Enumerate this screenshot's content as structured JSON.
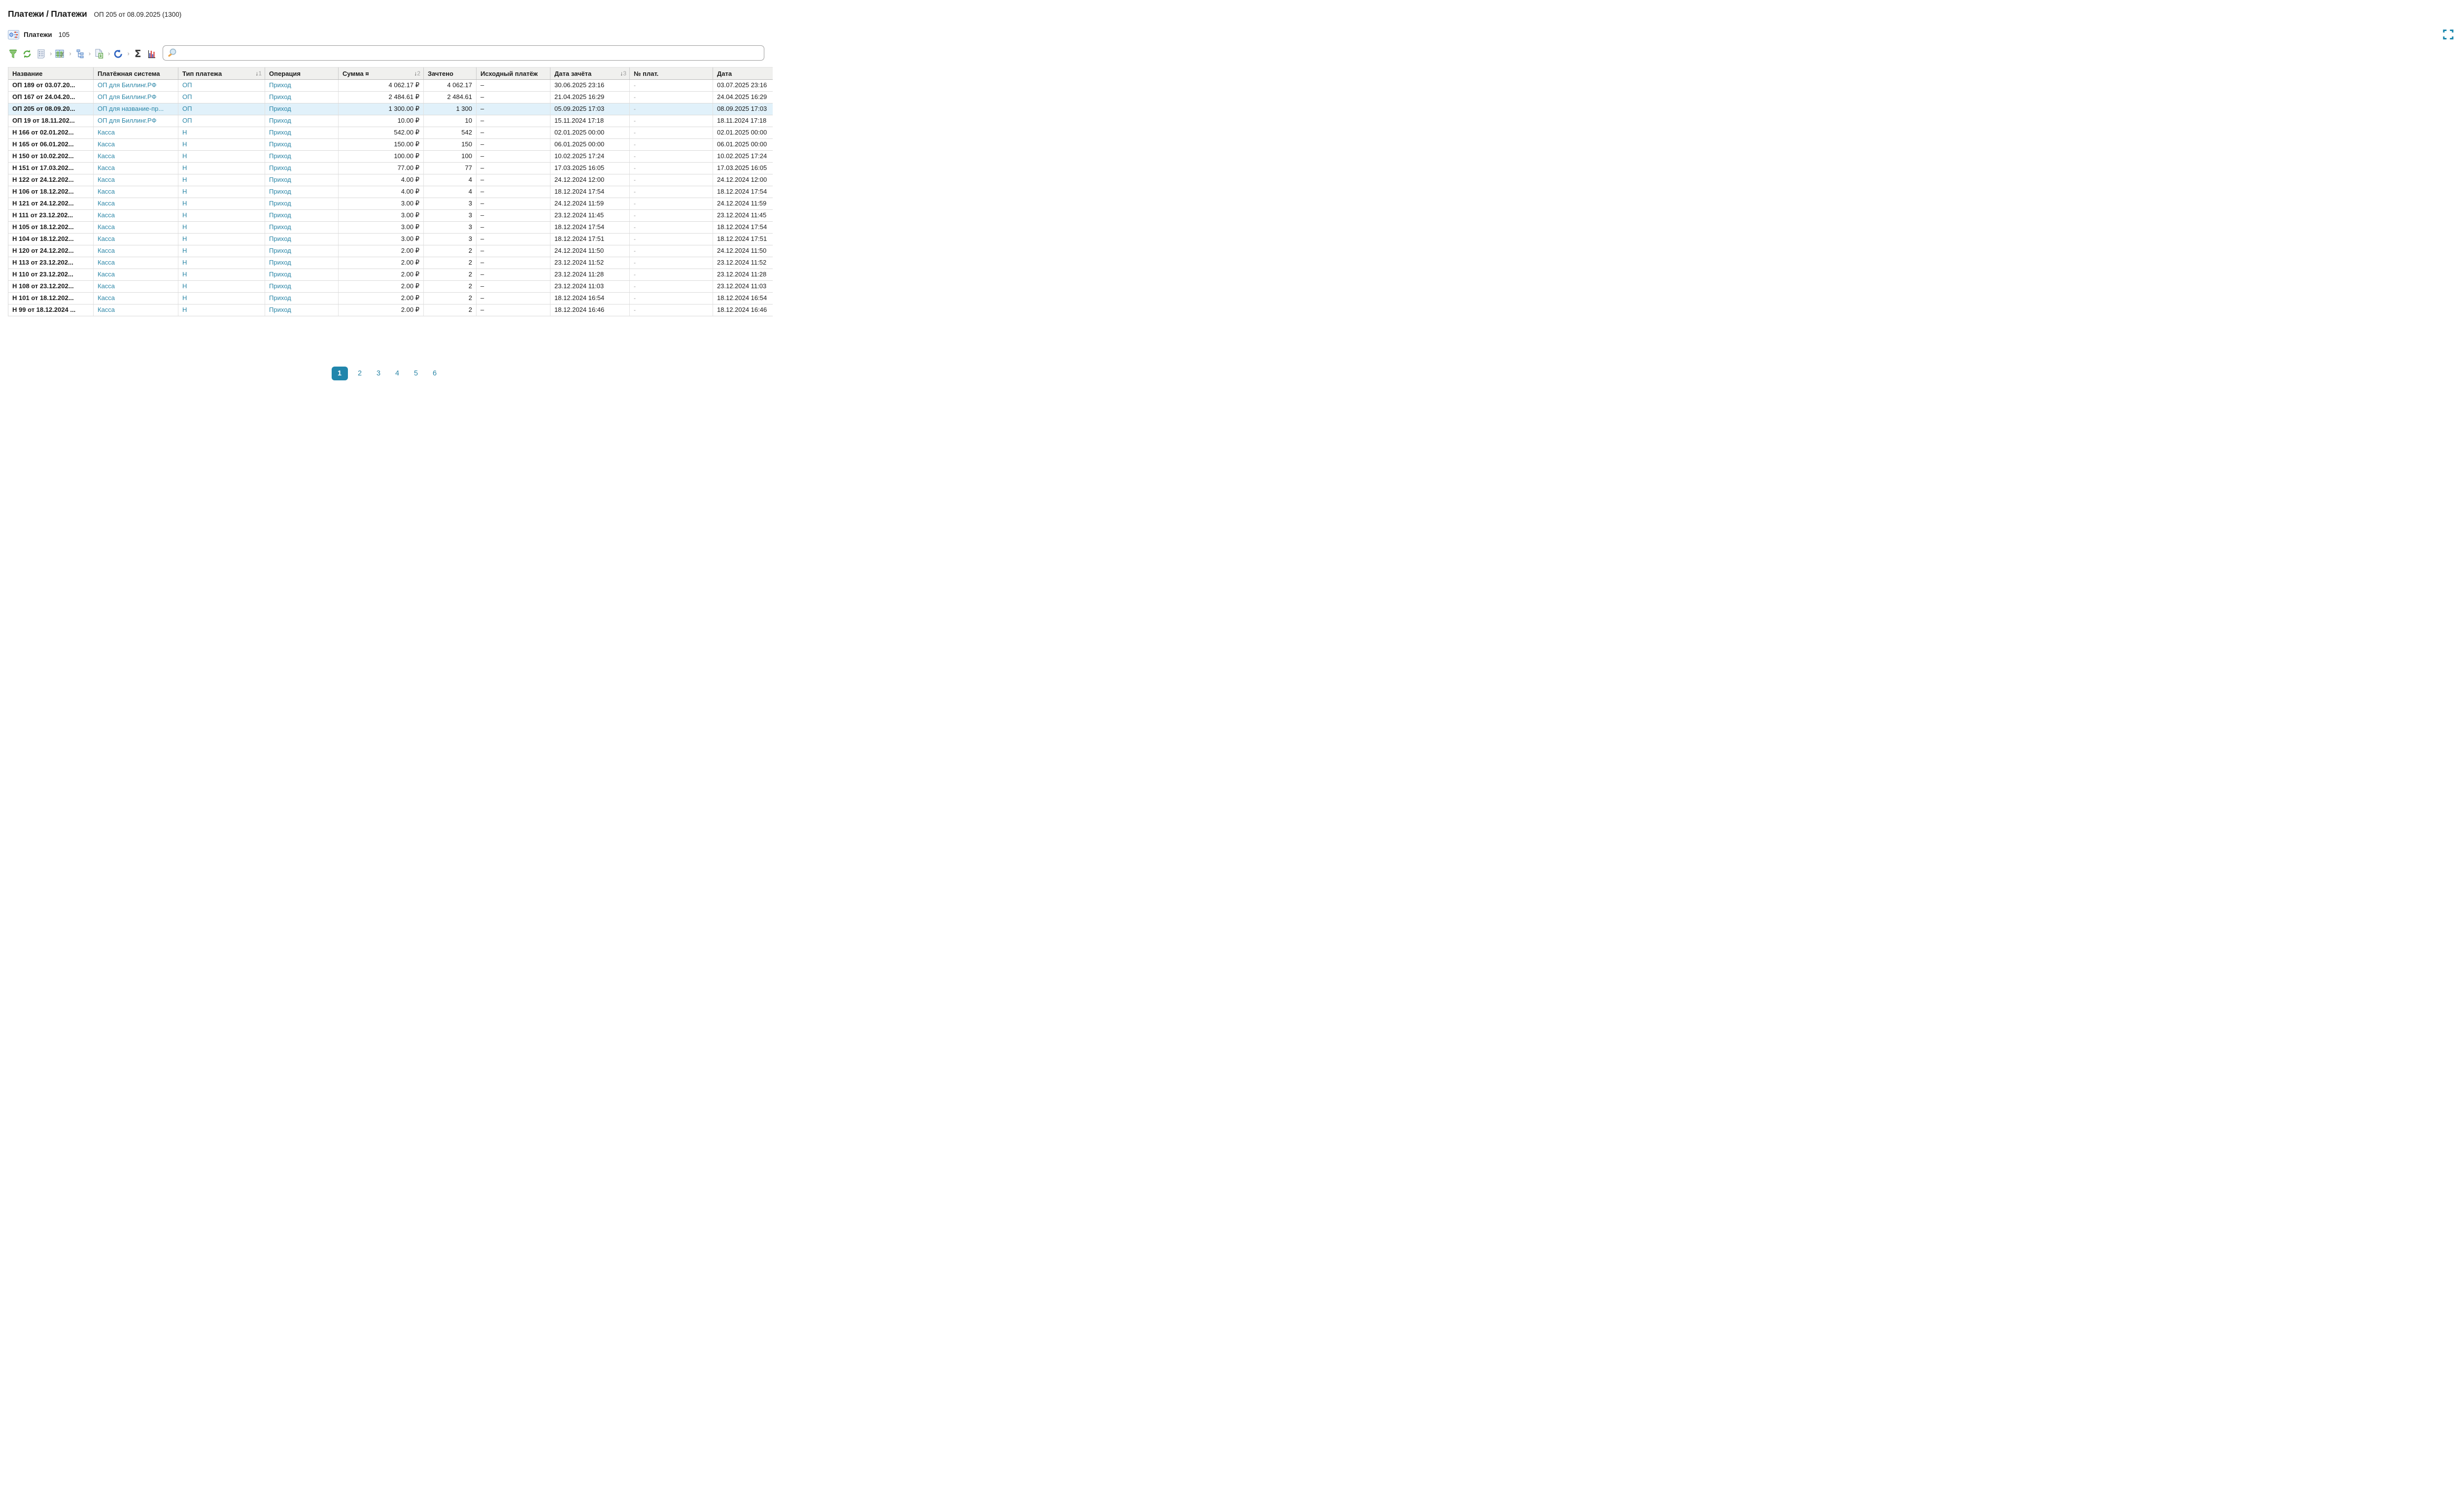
{
  "page": {
    "title": "Платежи / Платежи",
    "subtitle": "ОП 205 от 08.09.2025 (1300)",
    "list_title": "Платежи",
    "list_count": "105"
  },
  "toolbar": {
    "icons": [
      "filter-icon",
      "refresh-icon",
      "report-icon",
      "table-edit-icon",
      "tree-icon",
      "export-icon",
      "undo-icon",
      "sum-icon",
      "chart-icon"
    ],
    "search": {
      "value": "",
      "placeholder": ""
    }
  },
  "colors": {
    "accent_teal": "#2b86a7",
    "pagination_active_bg": "#2186ac",
    "selected_row_bg": "#e1f1fa",
    "header_bg": "#f0f0ee",
    "icon_green": "#5aab46",
    "icon_blue": "#3f6fbe",
    "icon_red": "#d9533d"
  },
  "table": {
    "columns": [
      {
        "id": "name",
        "label": "Название",
        "sort": ""
      },
      {
        "id": "payment-system",
        "label": "Платёжная система",
        "sort": ""
      },
      {
        "id": "payment-type",
        "label": "Тип платежа",
        "sort": "1"
      },
      {
        "id": "operation",
        "label": "Операция",
        "sort": ""
      },
      {
        "id": "sum",
        "label": "Сумма ¤",
        "sort": "2"
      },
      {
        "id": "credited",
        "label": "Зачтено",
        "sort": ""
      },
      {
        "id": "source-payment",
        "label": "Исходный платёж",
        "sort": ""
      },
      {
        "id": "credit-date",
        "label": "Дата зачёта",
        "sort": "3"
      },
      {
        "id": "payment-no",
        "label": "№ плат.",
        "sort": ""
      },
      {
        "id": "date",
        "label": "Дата",
        "sort": ""
      }
    ],
    "rows": [
      {
        "name": "ОП 189 от 03.07.20...",
        "system": "ОП для Биллинг.РФ",
        "type": "ОП",
        "operation": "Приход",
        "sum": "4 062.17 ₽",
        "credited": "4 062.17",
        "source": "–",
        "credit_date": "30.06.2025 23:16",
        "pay_no": "-",
        "date": "03.07.2025 23:16",
        "selected": false
      },
      {
        "name": "ОП 167 от 24.04.20...",
        "system": "ОП для Биллинг.РФ",
        "type": "ОП",
        "operation": "Приход",
        "sum": "2 484.61 ₽",
        "credited": "2 484.61",
        "source": "–",
        "credit_date": "21.04.2025 16:29",
        "pay_no": "-",
        "date": "24.04.2025 16:29",
        "selected": false
      },
      {
        "name": "ОП 205 от 08.09.20...",
        "system": "ОП для название-пр...",
        "type": "ОП",
        "operation": "Приход",
        "sum": "1 300.00 ₽",
        "credited": "1 300",
        "source": "–",
        "credit_date": "05.09.2025 17:03",
        "pay_no": "-",
        "date": "08.09.2025 17:03",
        "selected": true
      },
      {
        "name": "ОП 19 от 18.11.202...",
        "system": "ОП для Биллинг.РФ",
        "type": "ОП",
        "operation": "Приход",
        "sum": "10.00 ₽",
        "credited": "10",
        "source": "–",
        "credit_date": "15.11.2024 17:18",
        "pay_no": "-",
        "date": "18.11.2024 17:18",
        "selected": false
      },
      {
        "name": "Н 166 от 02.01.202...",
        "system": "Касса",
        "type": "Н",
        "operation": "Приход",
        "sum": "542.00 ₽",
        "credited": "542",
        "source": "–",
        "credit_date": "02.01.2025 00:00",
        "pay_no": "-",
        "date": "02.01.2025 00:00",
        "selected": false
      },
      {
        "name": "Н 165 от 06.01.202...",
        "system": "Касса",
        "type": "Н",
        "operation": "Приход",
        "sum": "150.00 ₽",
        "credited": "150",
        "source": "–",
        "credit_date": "06.01.2025 00:00",
        "pay_no": "-",
        "date": "06.01.2025 00:00",
        "selected": false
      },
      {
        "name": "Н 150 от 10.02.202...",
        "system": "Касса",
        "type": "Н",
        "operation": "Приход",
        "sum": "100.00 ₽",
        "credited": "100",
        "source": "–",
        "credit_date": "10.02.2025 17:24",
        "pay_no": "-",
        "date": "10.02.2025 17:24",
        "selected": false
      },
      {
        "name": "Н 151 от 17.03.202...",
        "system": "Касса",
        "type": "Н",
        "operation": "Приход",
        "sum": "77.00 ₽",
        "credited": "77",
        "source": "–",
        "credit_date": "17.03.2025 16:05",
        "pay_no": "-",
        "date": "17.03.2025 16:05",
        "selected": false
      },
      {
        "name": "Н 122 от 24.12.202...",
        "system": "Касса",
        "type": "Н",
        "operation": "Приход",
        "sum": "4.00 ₽",
        "credited": "4",
        "source": "–",
        "credit_date": "24.12.2024 12:00",
        "pay_no": "-",
        "date": "24.12.2024 12:00",
        "selected": false
      },
      {
        "name": "Н 106 от 18.12.202...",
        "system": "Касса",
        "type": "Н",
        "operation": "Приход",
        "sum": "4.00 ₽",
        "credited": "4",
        "source": "–",
        "credit_date": "18.12.2024 17:54",
        "pay_no": "-",
        "date": "18.12.2024 17:54",
        "selected": false
      },
      {
        "name": "Н 121 от 24.12.202...",
        "system": "Касса",
        "type": "Н",
        "operation": "Приход",
        "sum": "3.00 ₽",
        "credited": "3",
        "source": "–",
        "credit_date": "24.12.2024 11:59",
        "pay_no": "-",
        "date": "24.12.2024 11:59",
        "selected": false
      },
      {
        "name": "Н 111 от 23.12.202...",
        "system": "Касса",
        "type": "Н",
        "operation": "Приход",
        "sum": "3.00 ₽",
        "credited": "3",
        "source": "–",
        "credit_date": "23.12.2024 11:45",
        "pay_no": "-",
        "date": "23.12.2024 11:45",
        "selected": false
      },
      {
        "name": "Н 105 от 18.12.202...",
        "system": "Касса",
        "type": "Н",
        "operation": "Приход",
        "sum": "3.00 ₽",
        "credited": "3",
        "source": "–",
        "credit_date": "18.12.2024 17:54",
        "pay_no": "-",
        "date": "18.12.2024 17:54",
        "selected": false
      },
      {
        "name": "Н 104 от 18.12.202...",
        "system": "Касса",
        "type": "Н",
        "operation": "Приход",
        "sum": "3.00 ₽",
        "credited": "3",
        "source": "–",
        "credit_date": "18.12.2024 17:51",
        "pay_no": "-",
        "date": "18.12.2024 17:51",
        "selected": false
      },
      {
        "name": "Н 120 от 24.12.202...",
        "system": "Касса",
        "type": "Н",
        "operation": "Приход",
        "sum": "2.00 ₽",
        "credited": "2",
        "source": "–",
        "credit_date": "24.12.2024 11:50",
        "pay_no": "-",
        "date": "24.12.2024 11:50",
        "selected": false
      },
      {
        "name": "Н 113 от 23.12.202...",
        "system": "Касса",
        "type": "Н",
        "operation": "Приход",
        "sum": "2.00 ₽",
        "credited": "2",
        "source": "–",
        "credit_date": "23.12.2024 11:52",
        "pay_no": "-",
        "date": "23.12.2024 11:52",
        "selected": false
      },
      {
        "name": "Н 110 от 23.12.202...",
        "system": "Касса",
        "type": "Н",
        "operation": "Приход",
        "sum": "2.00 ₽",
        "credited": "2",
        "source": "–",
        "credit_date": "23.12.2024 11:28",
        "pay_no": "-",
        "date": "23.12.2024 11:28",
        "selected": false
      },
      {
        "name": "Н 108 от 23.12.202...",
        "system": "Касса",
        "type": "Н",
        "operation": "Приход",
        "sum": "2.00 ₽",
        "credited": "2",
        "source": "–",
        "credit_date": "23.12.2024 11:03",
        "pay_no": "-",
        "date": "23.12.2024 11:03",
        "selected": false
      },
      {
        "name": "Н 101 от 18.12.202...",
        "system": "Касса",
        "type": "Н",
        "operation": "Приход",
        "sum": "2.00 ₽",
        "credited": "2",
        "source": "–",
        "credit_date": "18.12.2024 16:54",
        "pay_no": "-",
        "date": "18.12.2024 16:54",
        "selected": false
      },
      {
        "name": "Н 99 от 18.12.2024 ...",
        "system": "Касса",
        "type": "Н",
        "operation": "Приход",
        "sum": "2.00 ₽",
        "credited": "2",
        "source": "–",
        "credit_date": "18.12.2024 16:46",
        "pay_no": "-",
        "date": "18.12.2024 16:46",
        "selected": false
      }
    ]
  },
  "pagination": {
    "pages": [
      "1",
      "2",
      "3",
      "4",
      "5",
      "6"
    ],
    "active": "1"
  }
}
